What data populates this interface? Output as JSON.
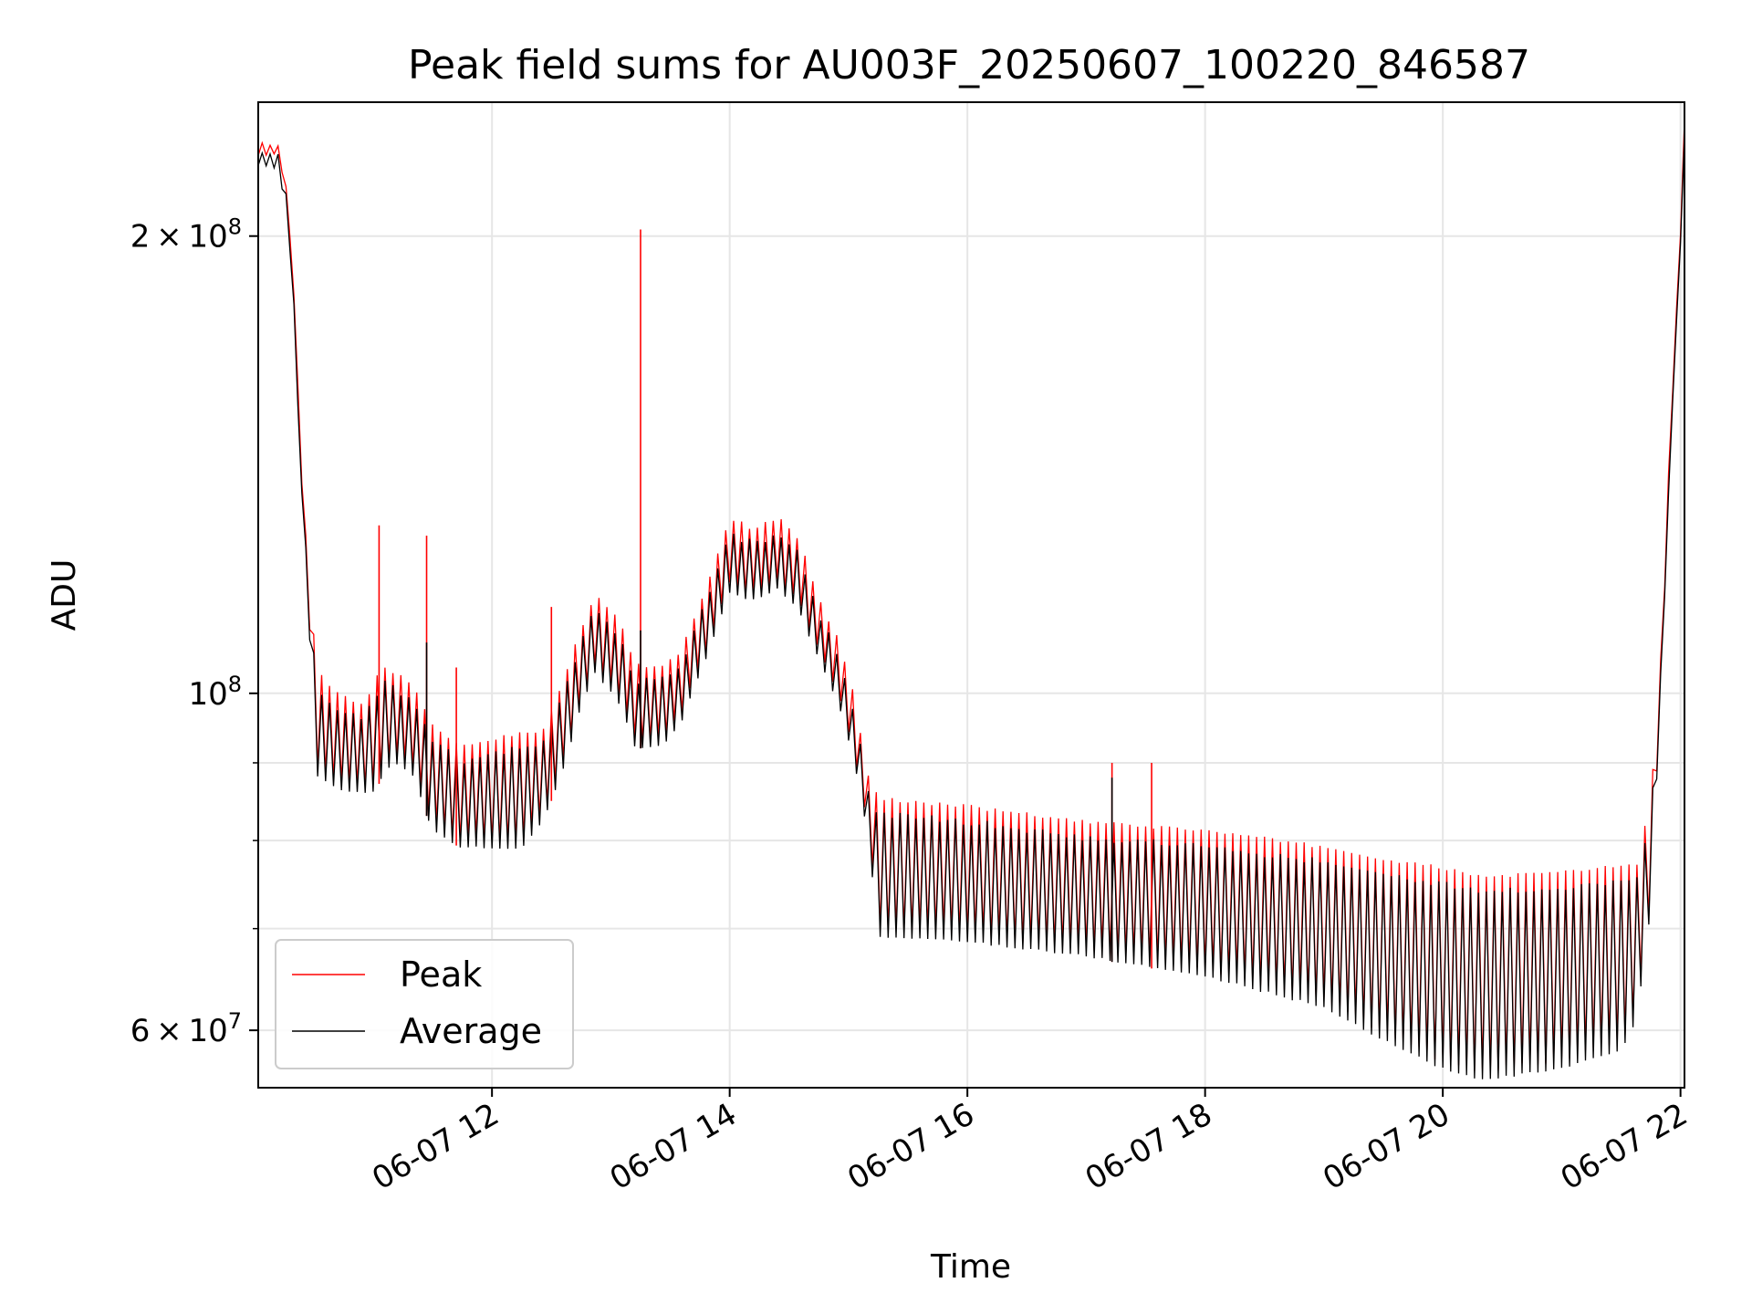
{
  "chart_data": {
    "type": "line",
    "title": "Peak field sums for AU003F_20250607_100220_846587",
    "xlabel": "Time",
    "ylabel": "ADU",
    "x_range": [
      "2025-06-07T10:02",
      "2025-06-07T22:02"
    ],
    "y_scale": "log",
    "ylim": [
      55000000,
      245000000
    ],
    "grid": true,
    "legend_position": "lower-left",
    "x_ticks": [
      {
        "value": "2025-06-07T12:00",
        "label": "06-07 12"
      },
      {
        "value": "2025-06-07T14:00",
        "label": "06-07 14"
      },
      {
        "value": "2025-06-07T16:00",
        "label": "06-07 16"
      },
      {
        "value": "2025-06-07T18:00",
        "label": "06-07 18"
      },
      {
        "value": "2025-06-07T20:00",
        "label": "06-07 20"
      },
      {
        "value": "2025-06-07T22:00",
        "label": "06-07 22"
      }
    ],
    "y_major_ticks": [
      {
        "value": 60000000,
        "label_mantissa": "6",
        "label_base": "10",
        "label_exp": "7",
        "has_mantissa": true
      },
      {
        "value": 100000000,
        "label_mantissa": "",
        "label_base": "10",
        "label_exp": "8",
        "has_mantissa": false
      },
      {
        "value": 200000000,
        "label_mantissa": "2",
        "label_base": "10",
        "label_exp": "8",
        "has_mantissa": true
      }
    ],
    "y_minor_ticks": [
      70000000,
      80000000,
      90000000
    ],
    "series": [
      {
        "name": "Peak",
        "color": "#ff0000",
        "description": "upper envelope of field sums",
        "envelope": [
          [
            "2025-06-07T10:02",
            226000000
          ],
          [
            "2025-06-07T10:12",
            226000000
          ],
          [
            "2025-06-07T10:17",
            210000000
          ],
          [
            "2025-06-07T10:20",
            180000000
          ],
          [
            "2025-06-07T10:24",
            140000000
          ],
          [
            "2025-06-07T10:28",
            115000000
          ],
          [
            "2025-06-07T10:32",
            103000000
          ],
          [
            "2025-06-07T10:40",
            100000000
          ],
          [
            "2025-06-07T10:55",
            98000000
          ],
          [
            "2025-06-07T11:05",
            104000000
          ],
          [
            "2025-06-07T11:20",
            101000000
          ],
          [
            "2025-06-07T11:30",
            95000000
          ],
          [
            "2025-06-07T11:45",
            92000000
          ],
          [
            "2025-06-07T12:00",
            93000000
          ],
          [
            "2025-06-07T12:15",
            94000000
          ],
          [
            "2025-06-07T12:25",
            94000000
          ],
          [
            "2025-06-07T12:35",
            101000000
          ],
          [
            "2025-06-07T12:45",
            110000000
          ],
          [
            "2025-06-07T12:52",
            116000000
          ],
          [
            "2025-06-07T13:05",
            111000000
          ],
          [
            "2025-06-07T13:12",
            104000000
          ],
          [
            "2025-06-07T13:25",
            104000000
          ],
          [
            "2025-06-07T13:35",
            106000000
          ],
          [
            "2025-06-07T13:50",
            119000000
          ],
          [
            "2025-06-07T14:00",
            130000000
          ],
          [
            "2025-06-07T14:12",
            128000000
          ],
          [
            "2025-06-07T14:25",
            130000000
          ],
          [
            "2025-06-07T14:35",
            126000000
          ],
          [
            "2025-06-07T14:45",
            115000000
          ],
          [
            "2025-06-07T14:55",
            108000000
          ],
          [
            "2025-06-07T15:03",
            99000000
          ],
          [
            "2025-06-07T15:10",
            88000000
          ],
          [
            "2025-06-07T15:15",
            85000000
          ],
          [
            "2025-06-07T16:00",
            84000000
          ],
          [
            "2025-06-07T17:00",
            82000000
          ],
          [
            "2025-06-07T18:00",
            81000000
          ],
          [
            "2025-06-07T19:00",
            79000000
          ],
          [
            "2025-06-07T19:30",
            77500000
          ],
          [
            "2025-06-07T20:00",
            76500000
          ],
          [
            "2025-06-07T20:20",
            75500000
          ],
          [
            "2025-06-07T21:00",
            76000000
          ],
          [
            "2025-06-07T21:38",
            77000000
          ],
          [
            "2025-06-07T21:45",
            85000000
          ],
          [
            "2025-06-07T21:50",
            105000000
          ],
          [
            "2025-06-07T21:56",
            160000000
          ],
          [
            "2025-06-07T22:00",
            200000000
          ],
          [
            "2025-06-07T22:02",
            238000000
          ]
        ],
        "spikes": [
          [
            "2025-06-07T11:03",
            129000000
          ],
          [
            "2025-06-07T11:27",
            127000000
          ],
          [
            "2025-06-07T11:42",
            104000000
          ],
          [
            "2025-06-07T12:30",
            114000000
          ],
          [
            "2025-06-07T13:15",
            202000000
          ],
          [
            "2025-06-07T17:13",
            90000000
          ],
          [
            "2025-06-07T17:33",
            90000000
          ]
        ]
      },
      {
        "name": "Average",
        "color": "#000000",
        "description": "lower envelope of field sums",
        "envelope": [
          [
            "2025-06-07T10:02",
            226000000
          ],
          [
            "2025-06-07T10:12",
            226000000
          ],
          [
            "2025-06-07T10:17",
            210000000
          ],
          [
            "2025-06-07T10:20",
            180000000
          ],
          [
            "2025-06-07T10:24",
            135000000
          ],
          [
            "2025-06-07T10:28",
            108000000
          ],
          [
            "2025-06-07T10:32",
            88000000
          ],
          [
            "2025-06-07T10:45",
            86000000
          ],
          [
            "2025-06-07T11:00",
            86000000
          ],
          [
            "2025-06-07T11:10",
            90000000
          ],
          [
            "2025-06-07T11:20",
            88000000
          ],
          [
            "2025-06-07T11:30",
            81000000
          ],
          [
            "2025-06-07T11:45",
            79000000
          ],
          [
            "2025-06-07T12:00",
            79000000
          ],
          [
            "2025-06-07T12:15",
            79000000
          ],
          [
            "2025-06-07T12:25",
            82000000
          ],
          [
            "2025-06-07T12:35",
            88000000
          ],
          [
            "2025-06-07T12:45",
            98000000
          ],
          [
            "2025-06-07T12:52",
            103000000
          ],
          [
            "2025-06-07T13:05",
            98000000
          ],
          [
            "2025-06-07T13:12",
            92000000
          ],
          [
            "2025-06-07T13:25",
            92000000
          ],
          [
            "2025-06-07T13:35",
            95000000
          ],
          [
            "2025-06-07T13:50",
            107000000
          ],
          [
            "2025-06-07T14:00",
            116000000
          ],
          [
            "2025-06-07T14:12",
            115000000
          ],
          [
            "2025-06-07T14:25",
            117000000
          ],
          [
            "2025-06-07T14:35",
            113000000
          ],
          [
            "2025-06-07T14:45",
            105000000
          ],
          [
            "2025-06-07T14:55",
            98000000
          ],
          [
            "2025-06-07T15:03",
            90000000
          ],
          [
            "2025-06-07T15:10",
            80000000
          ],
          [
            "2025-06-07T15:15",
            69000000
          ],
          [
            "2025-06-07T16:00",
            68500000
          ],
          [
            "2025-06-07T17:00",
            67000000
          ],
          [
            "2025-06-07T18:00",
            65000000
          ],
          [
            "2025-06-07T19:00",
            62000000
          ],
          [
            "2025-06-07T19:30",
            59000000
          ],
          [
            "2025-06-07T20:00",
            56500000
          ],
          [
            "2025-06-07T20:20",
            55500000
          ],
          [
            "2025-06-07T21:00",
            56500000
          ],
          [
            "2025-06-07T21:30",
            58000000
          ],
          [
            "2025-06-07T21:38",
            61000000
          ],
          [
            "2025-06-07T21:45",
            72000000
          ],
          [
            "2025-06-07T21:50",
            100000000
          ],
          [
            "2025-06-07T21:56",
            155000000
          ],
          [
            "2025-06-07T22:00",
            198000000
          ],
          [
            "2025-06-07T22:02",
            238000000
          ]
        ],
        "spikes": [
          [
            "2025-06-07T11:27",
            108000000
          ],
          [
            "2025-06-07T13:15",
            110000000
          ],
          [
            "2025-06-07T17:13",
            88000000
          ]
        ]
      }
    ]
  }
}
